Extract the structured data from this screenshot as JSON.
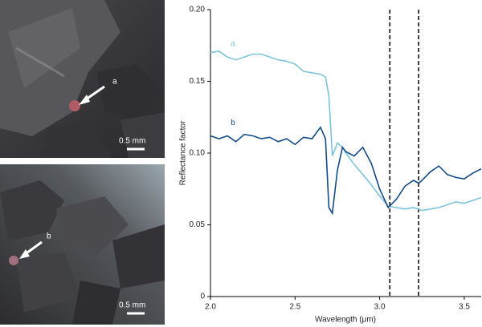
{
  "photos": {
    "top": {
      "pointer_label": "a",
      "scale_label": "0.5 mm"
    },
    "bottom": {
      "pointer_label": "b",
      "scale_label": "0.5 mm"
    }
  },
  "chart_data": {
    "type": "line",
    "x_label": "Wavelength (μm)",
    "y_label": "Reflectance factor",
    "x": [
      2.0,
      2.05,
      2.1,
      2.15,
      2.2,
      2.25,
      2.3,
      2.35,
      2.4,
      2.45,
      2.5,
      2.55,
      2.6,
      2.65,
      2.68,
      2.7,
      2.72,
      2.75,
      2.78,
      2.8,
      2.85,
      2.9,
      2.95,
      3.0,
      3.05,
      3.1,
      3.15,
      3.2,
      3.23,
      3.25,
      3.3,
      3.35,
      3.4,
      3.45,
      3.5,
      3.55,
      3.6
    ],
    "series": [
      {
        "name": "a",
        "color": "#7ec3dc",
        "values": [
          0.17,
          0.171,
          0.167,
          0.165,
          0.167,
          0.169,
          0.169,
          0.167,
          0.165,
          0.164,
          0.162,
          0.157,
          0.156,
          0.155,
          0.153,
          0.14,
          0.098,
          0.107,
          0.104,
          0.1,
          0.092,
          0.085,
          0.078,
          0.07,
          0.063,
          0.062,
          0.061,
          0.062,
          0.061,
          0.06,
          0.061,
          0.062,
          0.064,
          0.066,
          0.065,
          0.067,
          0.069
        ]
      },
      {
        "name": "b",
        "color": "#134b85",
        "values": [
          0.112,
          0.11,
          0.112,
          0.108,
          0.113,
          0.112,
          0.11,
          0.111,
          0.108,
          0.11,
          0.106,
          0.111,
          0.11,
          0.118,
          0.11,
          0.062,
          0.058,
          0.088,
          0.104,
          0.101,
          0.098,
          0.104,
          0.093,
          0.075,
          0.062,
          0.068,
          0.077,
          0.081,
          0.079,
          0.081,
          0.087,
          0.091,
          0.085,
          0.083,
          0.082,
          0.086,
          0.089
        ]
      }
    ],
    "xlim": [
      2.0,
      3.6
    ],
    "ylim": [
      0,
      0.2
    ],
    "xticks": [
      {
        "value": 2.0,
        "label": "2.0"
      },
      2.5,
      {
        "value": 3.0,
        "label": "3.0"
      },
      3.5
    ],
    "yticks": [
      0,
      0.05,
      {
        "value": 0.1,
        "label": "0.10"
      },
      0.15,
      {
        "value": 0.2,
        "label": "0.20"
      }
    ],
    "vlines": [
      3.06,
      3.23
    ],
    "vline_color": "#000000"
  }
}
